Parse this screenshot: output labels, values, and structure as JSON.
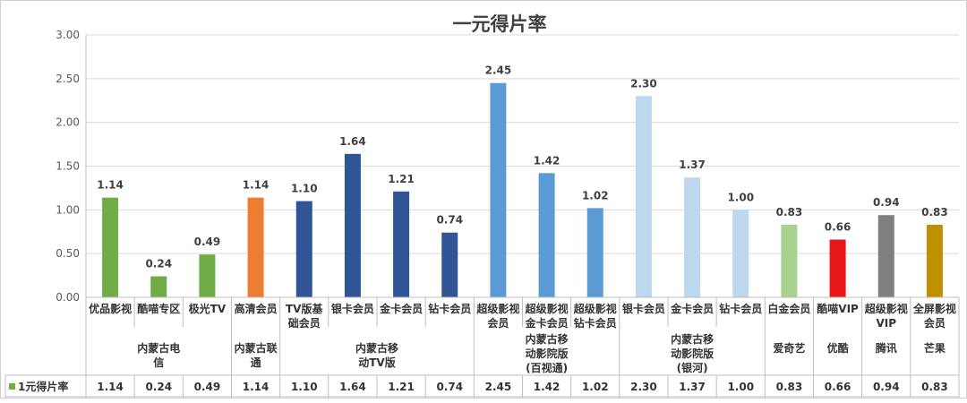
{
  "chart_data": {
    "type": "bar",
    "title": "一元得片率",
    "ylim": [
      0,
      3.0
    ],
    "yticks": [
      "0.00",
      "0.50",
      "1.00",
      "1.50",
      "2.00",
      "2.50",
      "3.00"
    ],
    "grid": true,
    "categories": [
      "优品影视",
      "酷喵专区",
      "极光TV",
      "高清会员",
      "TV版基础会员",
      "银卡会员",
      "金卡会员",
      "钻卡会员",
      "超级影视会员",
      "超级影视金卡会员",
      "超级影视钻卡会员",
      "银卡会员",
      "金卡会员",
      "钻卡会员",
      "白金会员",
      "酷喵VIP",
      "超级影视VIP",
      "全屏影视会员"
    ],
    "category_lines": [
      [
        "优品影视"
      ],
      [
        "酷喵专区"
      ],
      [
        "极光TV"
      ],
      [
        "高清会员"
      ],
      [
        "TV版基",
        "础会员"
      ],
      [
        "银卡会员"
      ],
      [
        "金卡会员"
      ],
      [
        "钻卡会员"
      ],
      [
        "超级影视",
        "会员"
      ],
      [
        "超级影视",
        "金卡会员"
      ],
      [
        "超级影视",
        "钻卡会员"
      ],
      [
        "银卡会员"
      ],
      [
        "金卡会员"
      ],
      [
        "钻卡会员"
      ],
      [
        "白金会员"
      ],
      [
        "酷喵VIP"
      ],
      [
        "超级影视",
        "VIP"
      ],
      [
        "全屏影视",
        "会员"
      ]
    ],
    "groups": [
      {
        "lines": [
          "内蒙古电",
          "信"
        ],
        "start": 0,
        "end": 2
      },
      {
        "lines": [
          "内蒙古联",
          "通"
        ],
        "start": 3,
        "end": 3
      },
      {
        "lines": [
          "内蒙古移",
          "动TV版"
        ],
        "start": 4,
        "end": 7
      },
      {
        "lines": [
          "内蒙古移",
          "动影院版",
          "(百视通)"
        ],
        "start": 8,
        "end": 10
      },
      {
        "lines": [
          "内蒙古移",
          "动影院版",
          "(银河)"
        ],
        "start": 11,
        "end": 13
      },
      {
        "lines": [
          "爱奇艺"
        ],
        "start": 14,
        "end": 14
      },
      {
        "lines": [
          "优酷"
        ],
        "start": 15,
        "end": 15
      },
      {
        "lines": [
          "腾讯"
        ],
        "start": 16,
        "end": 16
      },
      {
        "lines": [
          "芒果"
        ],
        "start": 17,
        "end": 17
      }
    ],
    "series": [
      {
        "name": "1元得片率",
        "values": [
          1.14,
          0.24,
          0.49,
          1.14,
          1.1,
          1.64,
          1.21,
          0.74,
          2.45,
          1.42,
          1.02,
          2.3,
          1.37,
          1.0,
          0.83,
          0.66,
          0.94,
          0.83
        ],
        "labels": [
          "1.14",
          "0.24",
          "0.49",
          "1.14",
          "1.10",
          "1.64",
          "1.21",
          "0.74",
          "2.45",
          "1.42",
          "1.02",
          "2.30",
          "1.37",
          "1.00",
          "0.83",
          "0.66",
          "0.94",
          "0.83"
        ]
      }
    ],
    "bar_colors": [
      "#70ad47",
      "#70ad47",
      "#70ad47",
      "#ed7d31",
      "#2f5597",
      "#2f5597",
      "#2f5597",
      "#2f5597",
      "#5b9bd5",
      "#5b9bd5",
      "#5b9bd5",
      "#bdd7ee",
      "#bdd7ee",
      "#bdd7ee",
      "#a9d18e",
      "#e81717",
      "#7f7f7f",
      "#bf9000"
    ],
    "legend_color": "#70ad47",
    "data_table": true
  }
}
